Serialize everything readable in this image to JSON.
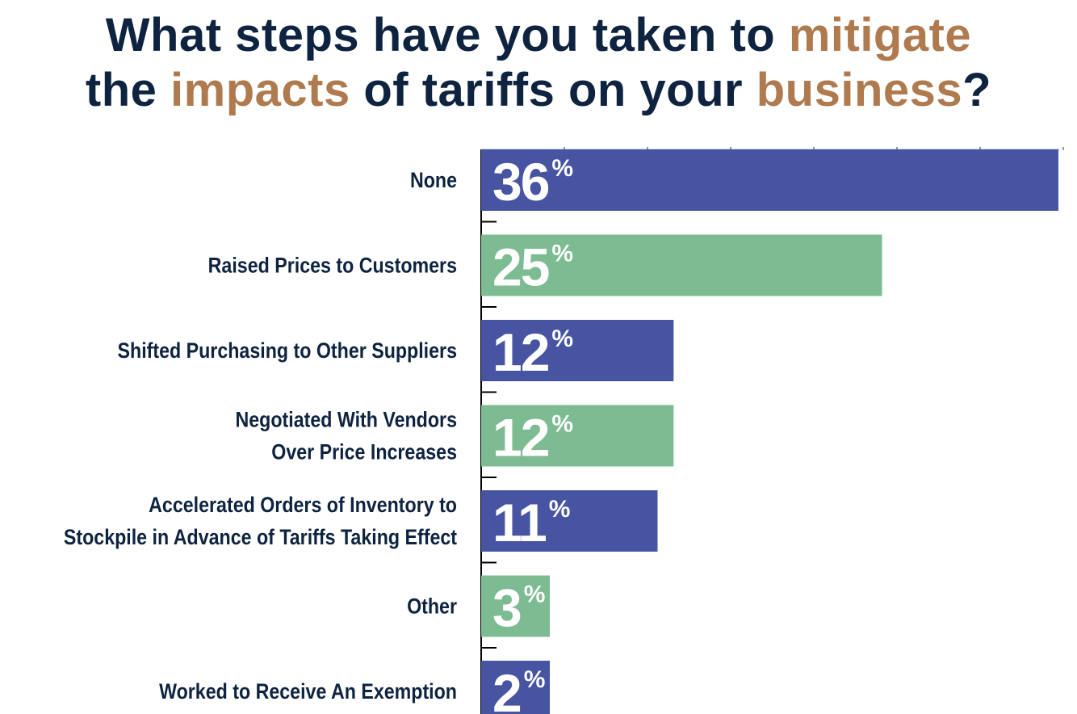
{
  "title": {
    "line1": [
      {
        "text": "What steps have you taken to ",
        "accent": false
      },
      {
        "text": "mitigate",
        "accent": true
      }
    ],
    "line2": [
      {
        "text": "the ",
        "accent": false
      },
      {
        "text": "impacts",
        "accent": true
      },
      {
        "text": " of tariffs on your ",
        "accent": false
      },
      {
        "text": "business",
        "accent": true
      },
      {
        "text": "?",
        "accent": false
      }
    ]
  },
  "colors": {
    "title": "#0e2340",
    "accent": "#b07a4f",
    "blue": "#4754a2",
    "green": "#7dbb92"
  },
  "chart_data": {
    "type": "bar",
    "orientation": "horizontal",
    "title": "What steps have you taken to mitigate the impacts of tariffs on your business?",
    "categories": [
      [
        "None"
      ],
      [
        "Raised Prices to Customers"
      ],
      [
        "Shifted Purchasing to Other Suppliers"
      ],
      [
        "Negotiated With Vendors",
        "Over Price Increases"
      ],
      [
        "Accelerated Orders of Inventory to",
        "Stockpile in Advance of Tariffs Taking Effect"
      ],
      [
        "Other"
      ],
      [
        "Worked to Receive An Exemption"
      ]
    ],
    "values": [
      36,
      25,
      12,
      12,
      11,
      3,
      2
    ],
    "value_labels": [
      "36",
      "25",
      "12",
      "12",
      "11",
      "3",
      "2"
    ],
    "unit": "%",
    "bar_colors": [
      "blue",
      "green",
      "blue",
      "green",
      "blue",
      "green",
      "blue"
    ],
    "xlim": [
      0,
      36
    ],
    "grid": false,
    "legend": "none"
  }
}
